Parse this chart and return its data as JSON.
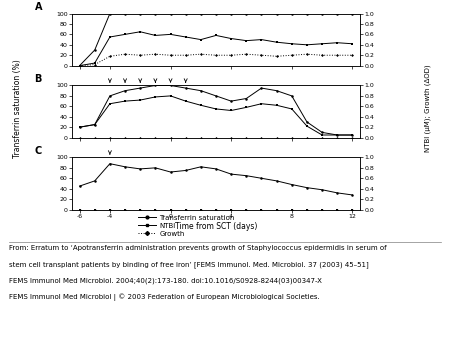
{
  "x": [
    -6,
    -5,
    -4,
    -3,
    -2,
    -1,
    0,
    1,
    2,
    3,
    4,
    5,
    6,
    7,
    8,
    9,
    10,
    11,
    12
  ],
  "panel_A": {
    "label": "A",
    "tsat": [
      0,
      30,
      100,
      100,
      100,
      100,
      100,
      100,
      100,
      100,
      100,
      100,
      100,
      100,
      100,
      100,
      100,
      100,
      100
    ],
    "ntbi": [
      0.0,
      0.05,
      0.55,
      0.6,
      0.65,
      0.58,
      0.6,
      0.55,
      0.5,
      0.58,
      0.52,
      0.48,
      0.5,
      0.45,
      0.42,
      0.4,
      0.42,
      0.44,
      0.42
    ],
    "growth": [
      0.0,
      0.02,
      0.18,
      0.22,
      0.2,
      0.22,
      0.2,
      0.2,
      0.22,
      0.2,
      0.2,
      0.22,
      0.2,
      0.18,
      0.2,
      0.22,
      0.2,
      0.2,
      0.2
    ],
    "arrows": []
  },
  "panel_B": {
    "label": "B",
    "tsat": [
      20,
      25,
      80,
      90,
      95,
      100,
      100,
      95,
      90,
      80,
      70,
      75,
      95,
      90,
      80,
      30,
      10,
      5,
      5
    ],
    "ntbi": [
      0.2,
      0.25,
      0.65,
      0.7,
      0.72,
      0.78,
      0.8,
      0.7,
      0.62,
      0.55,
      0.52,
      0.58,
      0.65,
      0.62,
      0.55,
      0.22,
      0.05,
      0.05,
      0.05
    ],
    "growth": [
      0.0,
      0.0,
      0.0,
      0.0,
      0.0,
      0.0,
      0.0,
      0.0,
      0.0,
      0.0,
      0.0,
      0.0,
      0.0,
      0.0,
      0.0,
      0.0,
      0.0,
      0.0,
      0.0
    ],
    "arrows": [
      -4,
      -3,
      -2,
      -1,
      0,
      1
    ]
  },
  "panel_C": {
    "label": "C",
    "tsat": [
      45,
      55,
      88,
      82,
      78,
      80,
      72,
      75,
      82,
      78,
      68,
      65,
      60,
      55,
      48,
      42,
      38,
      32,
      28
    ],
    "ntbi": [
      0.0,
      0.0,
      0.0,
      0.0,
      0.0,
      0.0,
      0.0,
      0.0,
      0.0,
      0.0,
      0.0,
      0.0,
      0.0,
      0.0,
      0.0,
      0.0,
      0.0,
      0.0,
      0.0
    ],
    "growth": [
      0.0,
      0.0,
      0.0,
      0.0,
      0.0,
      0.0,
      0.0,
      0.0,
      0.0,
      0.0,
      0.0,
      0.0,
      0.0,
      0.0,
      0.0,
      0.0,
      0.0,
      0.0,
      0.0
    ],
    "arrows": [
      -4
    ]
  },
  "xlim": [
    -6.5,
    12.5
  ],
  "xticks": [
    -6,
    -4,
    0,
    4,
    8,
    12
  ],
  "ylim_left": [
    0,
    100
  ],
  "yticks_left": [
    0,
    20,
    40,
    60,
    80,
    100
  ],
  "ylim_right": [
    0.0,
    1.0
  ],
  "yticks_right": [
    0.0,
    0.2,
    0.4,
    0.6,
    0.8,
    1.0
  ],
  "xlabel": "Time from SCT (days)",
  "ylabel_left": "Transferrin saturation (%)",
  "ylabel_right": "NTBI (μM); Growth (ΔOD)",
  "legend_labels": [
    "Transferrin saturation",
    "NTBI",
    "Growth"
  ],
  "caption_lines": [
    "From: Erratum to ‘Apotransferrin administration prevents growth of Staphylococcus epidermidis in serum of",
    "stem cell transplant patients by binding of free iron’ [FEMS Immunol. Med. Microbiol. 37 (2003) 45–51]",
    "FEMS Immunol Med Microbiol. 2004;40(2):173-180. doi:10.1016/S0928-8244(03)00347-X",
    "FEMS Immunol Med Microbiol | © 2003 Federation of European Microbiological Societies."
  ]
}
